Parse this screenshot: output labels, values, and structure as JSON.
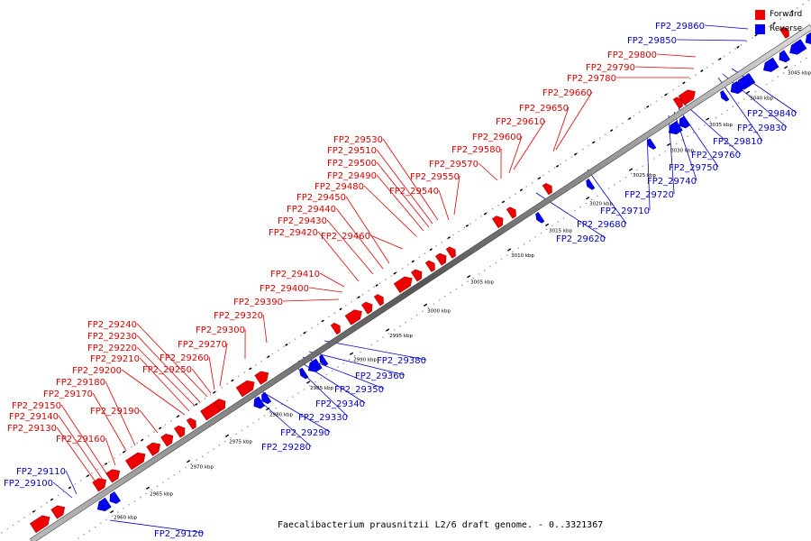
{
  "title": "Faecalibacterium prausnitzii L2/6 draft genome. - 0..3321367",
  "legend": {
    "forward": {
      "label": "Forward",
      "color": "#ee0000"
    },
    "reverse": {
      "label": "Reverse",
      "color": "#0000ee"
    }
  },
  "axis": {
    "unit": "kbp",
    "ticks": [
      2960,
      2965,
      2970,
      2975,
      2980,
      2985,
      2990,
      2995,
      3000,
      3005,
      3010,
      3015,
      3020,
      3025,
      3030,
      3035,
      3040,
      3045
    ]
  },
  "forward_labels": [
    "FP2_29800",
    "FP2_29790",
    "FP2_29780",
    "FP2_29660",
    "FP2_29650",
    "FP2_29610",
    "FP2_29600",
    "FP2_29580",
    "FP2_29570",
    "FP2_29550",
    "FP2_29540",
    "FP2_29530",
    "FP2_29510",
    "FP2_29500",
    "FP2_29490",
    "FP2_29480",
    "FP2_29460",
    "FP2_29450",
    "FP2_29440",
    "FP2_29430",
    "FP2_29420",
    "FP2_29410",
    "FP2_29400",
    "FP2_29390",
    "FP2_29320",
    "FP2_29300",
    "FP2_29270",
    "FP2_29260",
    "FP2_29250",
    "FP2_29240",
    "FP2_29230",
    "FP2_29220",
    "FP2_29210",
    "FP2_29200",
    "FP2_29190",
    "FP2_29180",
    "FP2_29170",
    "FP2_29160",
    "FP2_29150",
    "FP2_29140",
    "FP2_29130"
  ],
  "reverse_labels": [
    "FP2_29860",
    "FP2_29850",
    "FP2_29840",
    "FP2_29830",
    "FP2_29810",
    "FP2_29760",
    "FP2_29750",
    "FP2_29740",
    "FP2_29720",
    "FP2_29710",
    "FP2_29680",
    "FP2_29620",
    "FP2_29380",
    "FP2_29360",
    "FP2_29350",
    "FP2_29340",
    "FP2_29330",
    "FP2_29290",
    "FP2_29280",
    "FP2_29120",
    "FP2_29110",
    "FP2_29100"
  ]
}
